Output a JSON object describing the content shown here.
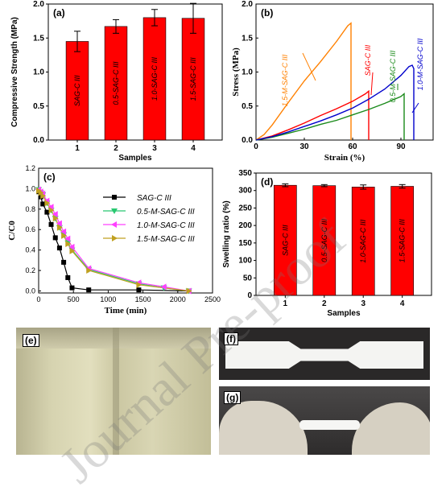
{
  "watermark": "Journal Pre-proof",
  "colors": {
    "bar": "#ff0000",
    "orange": "#ff8000",
    "red": "#ff0000",
    "green": "#1a8a1a",
    "blue": "#0000cc",
    "black": "#000000",
    "teal": "#28c870",
    "magenta": "#ff40ff",
    "olive": "#c0a020"
  },
  "chart_data": [
    {
      "panel": "(a)",
      "type": "bar",
      "ylabel": "Compressive Strength (MPa)",
      "xlabel": "Samples",
      "categories": [
        "1",
        "2",
        "3",
        "4"
      ],
      "values": [
        1.45,
        1.67,
        1.8,
        1.79
      ],
      "errors": [
        0.15,
        0.1,
        0.12,
        0.22
      ],
      "bar_labels": [
        "SAG-C III",
        "0.5-SAG-C III",
        "1.0-SAG-C III",
        "1.5-SAG-C III"
      ],
      "ylim": [
        0.0,
        2.0
      ],
      "yticks": [
        "0.0",
        "0.5",
        "1.0",
        "1.5",
        "2.0"
      ]
    },
    {
      "panel": "(b)",
      "type": "line",
      "ylabel": "Stress (MPa)",
      "xlabel": "Strain (%)",
      "xlim": [
        0,
        110
      ],
      "ylim": [
        0,
        2.0
      ],
      "xticks": [
        "0",
        "30",
        "60",
        "90"
      ],
      "yticks": [
        "0.0",
        "0.5",
        "1.0",
        "1.5",
        "2.0"
      ],
      "series": [
        {
          "name": "1.5-M-SAG-C III",
          "x": [
            0,
            5,
            10,
            20,
            30,
            40,
            50,
            57,
            59,
            59
          ],
          "y": [
            0,
            0.08,
            0.22,
            0.55,
            0.87,
            1.15,
            1.45,
            1.68,
            1.72,
            0
          ]
        },
        {
          "name": "SAG-C III",
          "x": [
            0,
            10,
            20,
            30,
            40,
            50,
            60,
            68,
            70,
            70
          ],
          "y": [
            0,
            0.06,
            0.15,
            0.25,
            0.36,
            0.46,
            0.57,
            0.68,
            0.72,
            0
          ]
        },
        {
          "name": "0.5-M-SAG-C III",
          "x": [
            0,
            10,
            20,
            30,
            40,
            50,
            60,
            70,
            80,
            90,
            92,
            92
          ],
          "y": [
            0,
            0.04,
            0.1,
            0.16,
            0.23,
            0.29,
            0.37,
            0.45,
            0.54,
            0.64,
            0.68,
            0
          ]
        },
        {
          "name": "1.0-M-SAG-C III",
          "x": [
            0,
            10,
            20,
            30,
            40,
            50,
            60,
            70,
            80,
            90,
            95,
            97,
            98,
            98
          ],
          "y": [
            0,
            0.05,
            0.12,
            0.2,
            0.28,
            0.37,
            0.47,
            0.6,
            0.75,
            0.95,
            1.08,
            1.1,
            1.05,
            0
          ]
        }
      ]
    },
    {
      "panel": "(c)",
      "type": "line",
      "ylabel": "C/C0",
      "xlabel": "Time (min)",
      "xlim": [
        0,
        2500
      ],
      "ylim": [
        -0.02,
        1.2
      ],
      "xticks": [
        "0",
        "500",
        "1000",
        "1500",
        "2000",
        "2500"
      ],
      "yticks": [
        "0.0",
        "0.2",
        "0.4",
        "0.6",
        "0.8",
        "1.0",
        "1.2"
      ],
      "series": [
        {
          "name": "SAG-C III",
          "x": [
            0,
            30,
            60,
            120,
            180,
            240,
            300,
            360,
            420,
            480,
            720,
            1440,
            2160
          ],
          "y": [
            0.97,
            0.92,
            0.85,
            0.77,
            0.65,
            0.52,
            0.42,
            0.28,
            0.13,
            0.03,
            0.01,
            0.01,
            0.0
          ]
        },
        {
          "name": "0.5-M-SAG-C III",
          "x": [
            0,
            30,
            60,
            120,
            180,
            240,
            300,
            360,
            420,
            480,
            720,
            1440,
            1800,
            2160
          ],
          "y": [
            0.99,
            0.96,
            0.94,
            0.86,
            0.79,
            0.71,
            0.62,
            0.55,
            0.47,
            0.4,
            0.21,
            0.07,
            0.03,
            0.0
          ]
        },
        {
          "name": "1.0-M-SAG-C III",
          "x": [
            0,
            30,
            60,
            120,
            180,
            240,
            300,
            360,
            420,
            480,
            720,
            1440,
            1800,
            2160
          ],
          "y": [
            0.99,
            0.97,
            0.95,
            0.88,
            0.82,
            0.75,
            0.66,
            0.58,
            0.51,
            0.43,
            0.22,
            0.08,
            0.04,
            0.0
          ]
        },
        {
          "name": "1.5-M-SAG-C III",
          "x": [
            0,
            30,
            60,
            120,
            180,
            240,
            300,
            360,
            420,
            480,
            720,
            1440,
            2160
          ],
          "y": [
            0.98,
            0.96,
            0.93,
            0.86,
            0.79,
            0.71,
            0.62,
            0.54,
            0.46,
            0.39,
            0.2,
            0.06,
            0.0
          ]
        }
      ]
    },
    {
      "panel": "(d)",
      "type": "bar",
      "ylabel": "Swelling ratio (%)",
      "xlabel": "Samples",
      "categories": [
        "1",
        "2",
        "3",
        "4"
      ],
      "values": [
        315,
        314,
        310,
        312
      ],
      "errors": [
        4,
        3,
        6,
        5
      ],
      "bar_labels": [
        "SAG-C III",
        "0.5-SAG-C III",
        "1.0-SAG-C III",
        "1.5-SAG-C III"
      ],
      "ylim": [
        0,
        350
      ],
      "yticks": [
        "0",
        "50",
        "100",
        "150",
        "200",
        "250",
        "300",
        "350"
      ]
    }
  ],
  "photos": {
    "e": "(e)",
    "f": "(f)",
    "g": "(g)"
  }
}
